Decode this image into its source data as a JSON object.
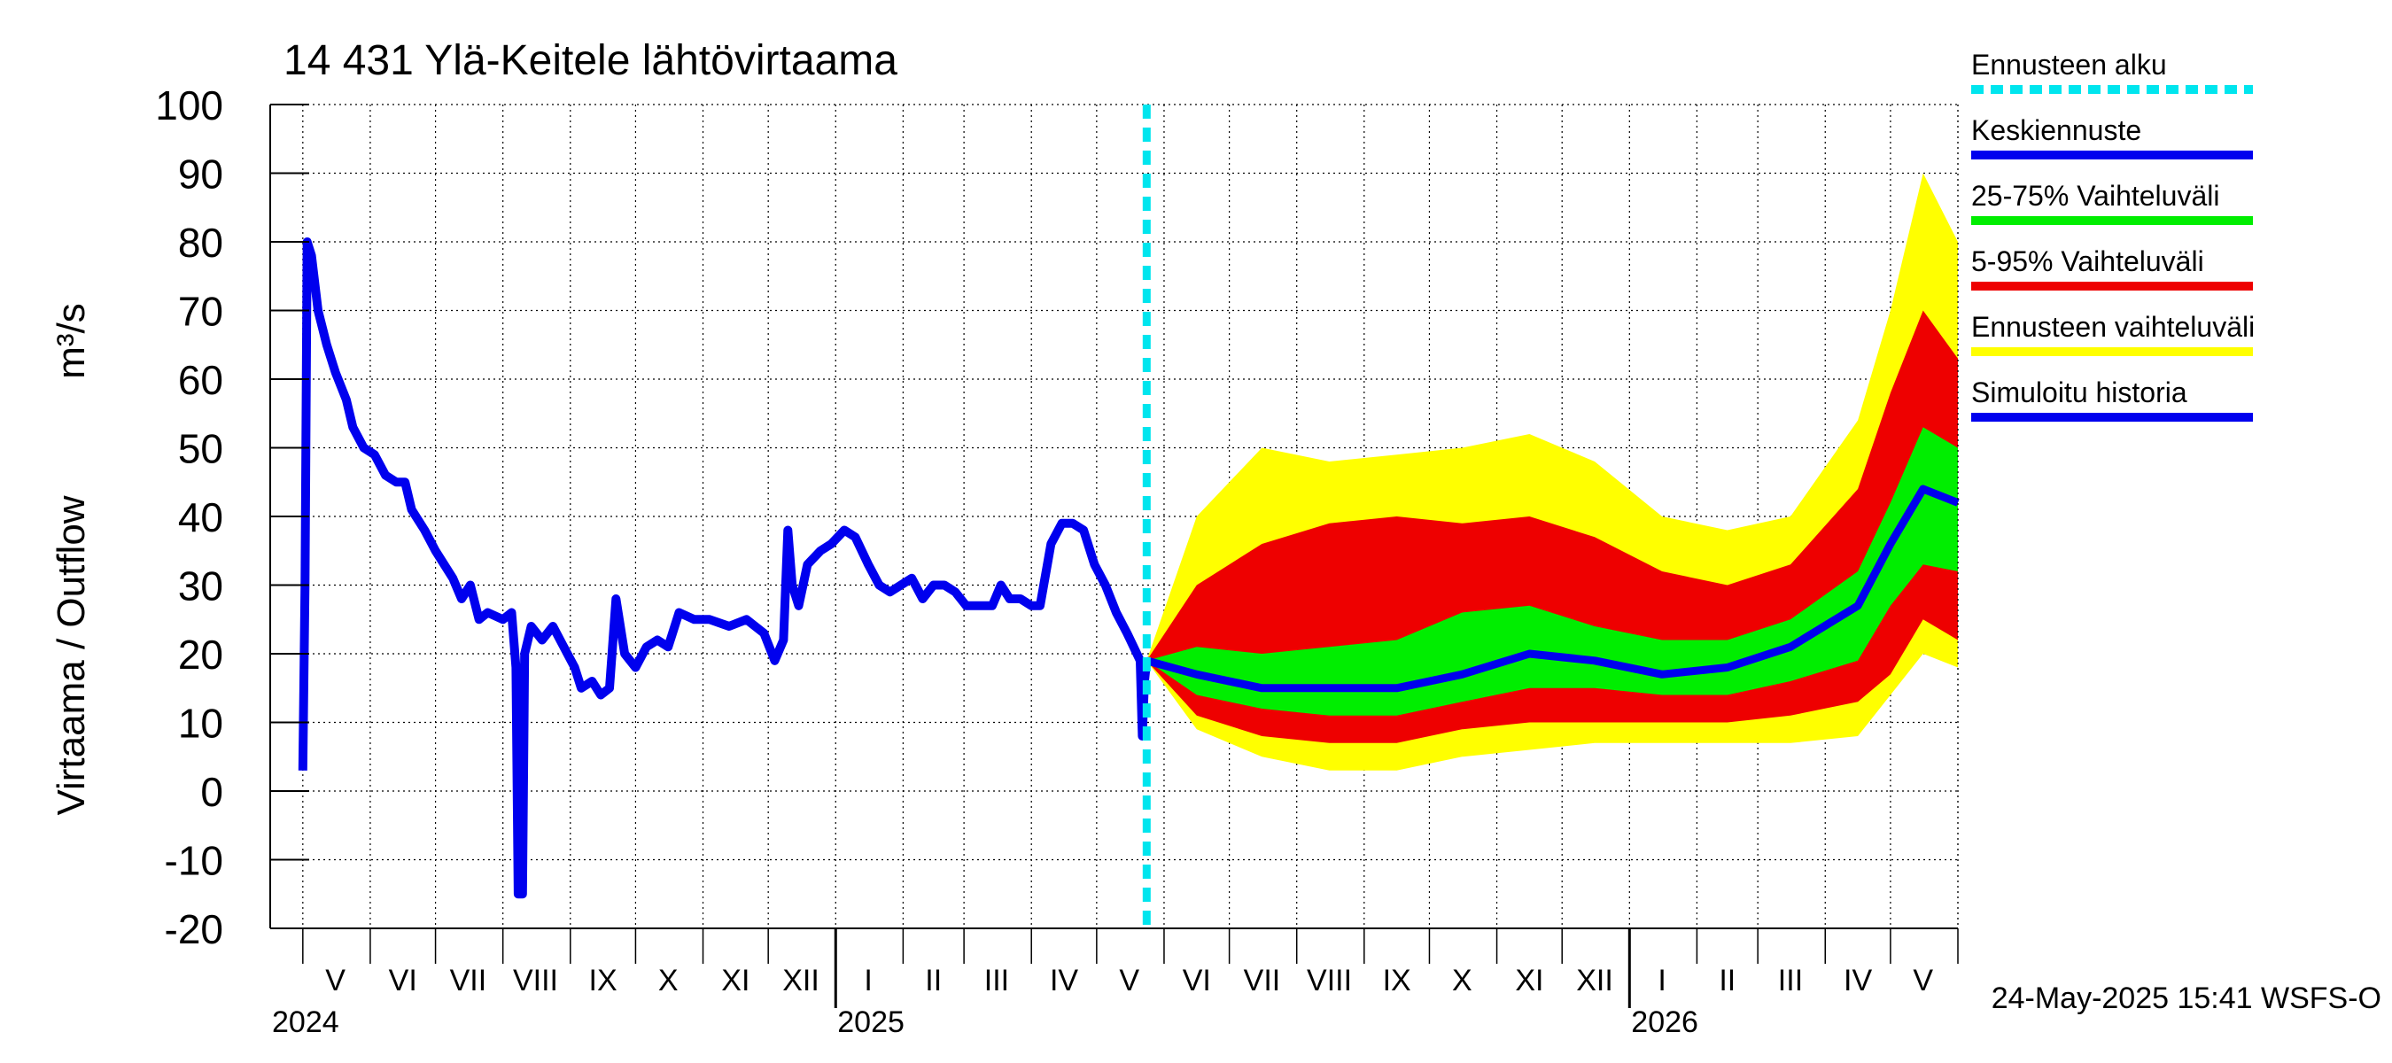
{
  "chart_data": {
    "type": "line",
    "title": "14 431 Ylä-Keitele lähtövirtaama",
    "ylabel": "Virtaama / Outflow",
    "yunit": "m³/s",
    "ylim": [
      -20,
      100
    ],
    "yticks": [
      -20,
      -10,
      0,
      10,
      20,
      30,
      40,
      50,
      60,
      70,
      80,
      90,
      100
    ],
    "x_range": [
      "2024-04-16",
      "2026-06-01"
    ],
    "grid": true,
    "month_labels": [
      {
        "label": "V",
        "date": "2024-05-16"
      },
      {
        "label": "VI",
        "date": "2024-06-16"
      },
      {
        "label": "VII",
        "date": "2024-07-16"
      },
      {
        "label": "VIII",
        "date": "2024-08-16"
      },
      {
        "label": "IX",
        "date": "2024-09-16"
      },
      {
        "label": "X",
        "date": "2024-10-16"
      },
      {
        "label": "XI",
        "date": "2024-11-16"
      },
      {
        "label": "XII",
        "date": "2024-12-16"
      },
      {
        "label": "I",
        "date": "2025-01-16"
      },
      {
        "label": "II",
        "date": "2025-02-15"
      },
      {
        "label": "III",
        "date": "2025-03-16"
      },
      {
        "label": "IV",
        "date": "2025-04-16"
      },
      {
        "label": "V",
        "date": "2025-05-16"
      },
      {
        "label": "VI",
        "date": "2025-06-16"
      },
      {
        "label": "VII",
        "date": "2025-07-16"
      },
      {
        "label": "VIII",
        "date": "2025-08-16"
      },
      {
        "label": "IX",
        "date": "2025-09-16"
      },
      {
        "label": "X",
        "date": "2025-10-16"
      },
      {
        "label": "XI",
        "date": "2025-11-16"
      },
      {
        "label": "XII",
        "date": "2025-12-16"
      },
      {
        "label": "I",
        "date": "2026-01-16"
      },
      {
        "label": "II",
        "date": "2026-02-15"
      },
      {
        "label": "III",
        "date": "2026-03-16"
      },
      {
        "label": "IV",
        "date": "2026-04-16"
      },
      {
        "label": "V",
        "date": "2026-05-16"
      }
    ],
    "year_labels": [
      {
        "label": "2024",
        "date": "2024-05-01"
      },
      {
        "label": "2025",
        "date": "2025-01-01"
      },
      {
        "label": "2026",
        "date": "2026-01-01"
      }
    ],
    "forecast_start": "2025-05-24",
    "legend": {
      "placement": "right",
      "entries": [
        {
          "name": "Ennusteen alku",
          "color": "#00e5ee",
          "style": "dashed"
        },
        {
          "name": "Keskiennuste",
          "color": "#0000ee",
          "style": "solid"
        },
        {
          "name": "25-75% Vaihteluväli",
          "color": "#00ee00",
          "style": "solid"
        },
        {
          "name": "5-95% Vaihteluväli",
          "color": "#ee0000",
          "style": "solid"
        },
        {
          "name": "Ennusteen vaihteluväli",
          "color": "#ffff00",
          "style": "solid"
        },
        {
          "name": "Simuloitu historia",
          "color": "#0000ee",
          "style": "solid"
        }
      ]
    },
    "timestamp": "24-May-2025 15:41 WSFS-O",
    "history": [
      [
        "2024-05-01",
        3
      ],
      [
        "2024-05-02",
        30
      ],
      [
        "2024-05-03",
        80
      ],
      [
        "2024-05-05",
        78
      ],
      [
        "2024-05-08",
        70
      ],
      [
        "2024-05-12",
        65
      ],
      [
        "2024-05-16",
        61
      ],
      [
        "2024-05-21",
        57
      ],
      [
        "2024-05-24",
        53
      ],
      [
        "2024-05-29",
        50
      ],
      [
        "2024-06-03",
        49
      ],
      [
        "2024-06-08",
        46
      ],
      [
        "2024-06-13",
        45
      ],
      [
        "2024-06-17",
        45
      ],
      [
        "2024-06-20",
        41
      ],
      [
        "2024-06-26",
        38
      ],
      [
        "2024-07-01",
        35
      ],
      [
        "2024-07-05",
        33
      ],
      [
        "2024-07-09",
        31
      ],
      [
        "2024-07-13",
        28
      ],
      [
        "2024-07-17",
        30
      ],
      [
        "2024-07-21",
        25
      ],
      [
        "2024-07-25",
        26
      ],
      [
        "2024-08-01",
        25
      ],
      [
        "2024-08-05",
        26
      ],
      [
        "2024-08-07",
        18
      ],
      [
        "2024-08-08",
        -15
      ],
      [
        "2024-08-10",
        -15
      ],
      [
        "2024-08-11",
        20
      ],
      [
        "2024-08-14",
        24
      ],
      [
        "2024-08-19",
        22
      ],
      [
        "2024-08-24",
        24
      ],
      [
        "2024-08-29",
        21
      ],
      [
        "2024-09-03",
        18
      ],
      [
        "2024-09-06",
        15
      ],
      [
        "2024-09-11",
        16
      ],
      [
        "2024-09-15",
        14
      ],
      [
        "2024-09-19",
        15
      ],
      [
        "2024-09-22",
        28
      ],
      [
        "2024-09-26",
        20
      ],
      [
        "2024-10-01",
        18
      ],
      [
        "2024-10-06",
        21
      ],
      [
        "2024-10-11",
        22
      ],
      [
        "2024-10-16",
        21
      ],
      [
        "2024-10-21",
        26
      ],
      [
        "2024-10-28",
        25
      ],
      [
        "2024-11-04",
        25
      ],
      [
        "2024-11-13",
        24
      ],
      [
        "2024-11-21",
        25
      ],
      [
        "2024-11-29",
        23
      ],
      [
        "2024-12-04",
        19
      ],
      [
        "2024-12-08",
        22
      ],
      [
        "2024-12-10",
        38
      ],
      [
        "2024-12-12",
        30
      ],
      [
        "2024-12-15",
        27
      ],
      [
        "2024-12-19",
        33
      ],
      [
        "2024-12-25",
        35
      ],
      [
        "2024-12-30",
        36
      ],
      [
        "2025-01-05",
        38
      ],
      [
        "2025-01-10",
        37
      ],
      [
        "2025-01-16",
        33
      ],
      [
        "2025-01-21",
        30
      ],
      [
        "2025-01-26",
        29
      ],
      [
        "2025-01-31",
        30
      ],
      [
        "2025-02-05",
        31
      ],
      [
        "2025-02-10",
        28
      ],
      [
        "2025-02-15",
        30
      ],
      [
        "2025-02-20",
        30
      ],
      [
        "2025-02-25",
        29
      ],
      [
        "2025-03-02",
        27
      ],
      [
        "2025-03-08",
        27
      ],
      [
        "2025-03-14",
        27
      ],
      [
        "2025-03-18",
        30
      ],
      [
        "2025-03-22",
        28
      ],
      [
        "2025-03-27",
        28
      ],
      [
        "2025-04-01",
        27
      ],
      [
        "2025-04-05",
        27
      ],
      [
        "2025-04-10",
        36
      ],
      [
        "2025-04-15",
        39
      ],
      [
        "2025-04-20",
        39
      ],
      [
        "2025-04-25",
        38
      ],
      [
        "2025-04-30",
        33
      ],
      [
        "2025-05-05",
        30
      ],
      [
        "2025-05-10",
        26
      ],
      [
        "2025-05-15",
        23
      ],
      [
        "2025-05-21",
        19
      ],
      [
        "2025-05-22",
        8
      ],
      [
        "2025-05-23",
        16
      ],
      [
        "2025-05-24",
        19
      ]
    ],
    "forecast": {
      "dates": [
        "2025-05-24",
        "2025-06-16",
        "2025-07-16",
        "2025-08-16",
        "2025-09-16",
        "2025-10-16",
        "2025-11-16",
        "2025-12-16",
        "2026-01-16",
        "2026-02-15",
        "2026-03-16",
        "2026-04-16",
        "2026-05-01",
        "2026-05-16",
        "2026-06-01"
      ],
      "median": [
        19,
        17,
        15,
        15,
        15,
        17,
        20,
        19,
        17,
        18,
        21,
        27,
        36,
        44,
        42
      ],
      "p25": [
        19,
        14,
        12,
        11,
        11,
        13,
        15,
        15,
        14,
        14,
        16,
        19,
        27,
        33,
        32
      ],
      "p75": [
        19,
        21,
        20,
        21,
        22,
        26,
        27,
        24,
        22,
        22,
        25,
        32,
        42,
        53,
        50
      ],
      "p05": [
        19,
        11,
        8,
        7,
        7,
        9,
        10,
        10,
        10,
        10,
        11,
        13,
        17,
        25,
        22
      ],
      "p95": [
        19,
        30,
        36,
        39,
        40,
        39,
        40,
        37,
        32,
        30,
        33,
        44,
        58,
        70,
        63
      ],
      "min": [
        19,
        9,
        5,
        3,
        3,
        5,
        6,
        7,
        7,
        7,
        7,
        8,
        14,
        20,
        18
      ],
      "max": [
        19,
        40,
        50,
        48,
        49,
        50,
        52,
        48,
        40,
        38,
        40,
        54,
        70,
        90,
        80
      ]
    }
  }
}
